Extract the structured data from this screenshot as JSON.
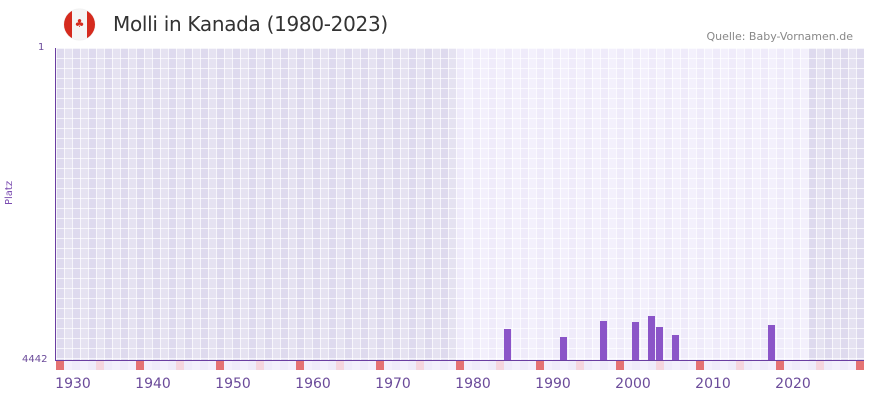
{
  "header": {
    "flag_icon": "canada-flag-icon",
    "title": "Molli in Kanada (1980-2023)",
    "source": "Quelle: Baby-Vornamen.de"
  },
  "colors": {
    "bar": "#8b55c8",
    "axis": "#6a3ea1",
    "shade_dark": "#e2dff0",
    "shade_light": "#f1eefb",
    "marker_decade": "#e57373",
    "marker_half": "#f5d5de"
  },
  "chart_data": {
    "type": "bar",
    "title": "Molli in Kanada (1980-2023)",
    "xlabel": "",
    "ylabel": "Platz",
    "y_inverted": true,
    "ylim": [
      1,
      4442
    ],
    "yticks": [
      "1",
      "4442"
    ],
    "xlim": [
      1928,
      2028
    ],
    "xticks": [
      "1930",
      "1940",
      "1950",
      "1960",
      "1970",
      "1980",
      "1990",
      "2000",
      "2010",
      "2020"
    ],
    "data_range_highlight": [
      1978,
      2021
    ],
    "categories": [
      "1984",
      "1991",
      "1996",
      "2000",
      "2002",
      "2003",
      "2005",
      "2017"
    ],
    "values": [
      4000,
      4110,
      3880,
      3900,
      3810,
      3970,
      4090,
      3940
    ],
    "grid": true,
    "legend": null
  }
}
